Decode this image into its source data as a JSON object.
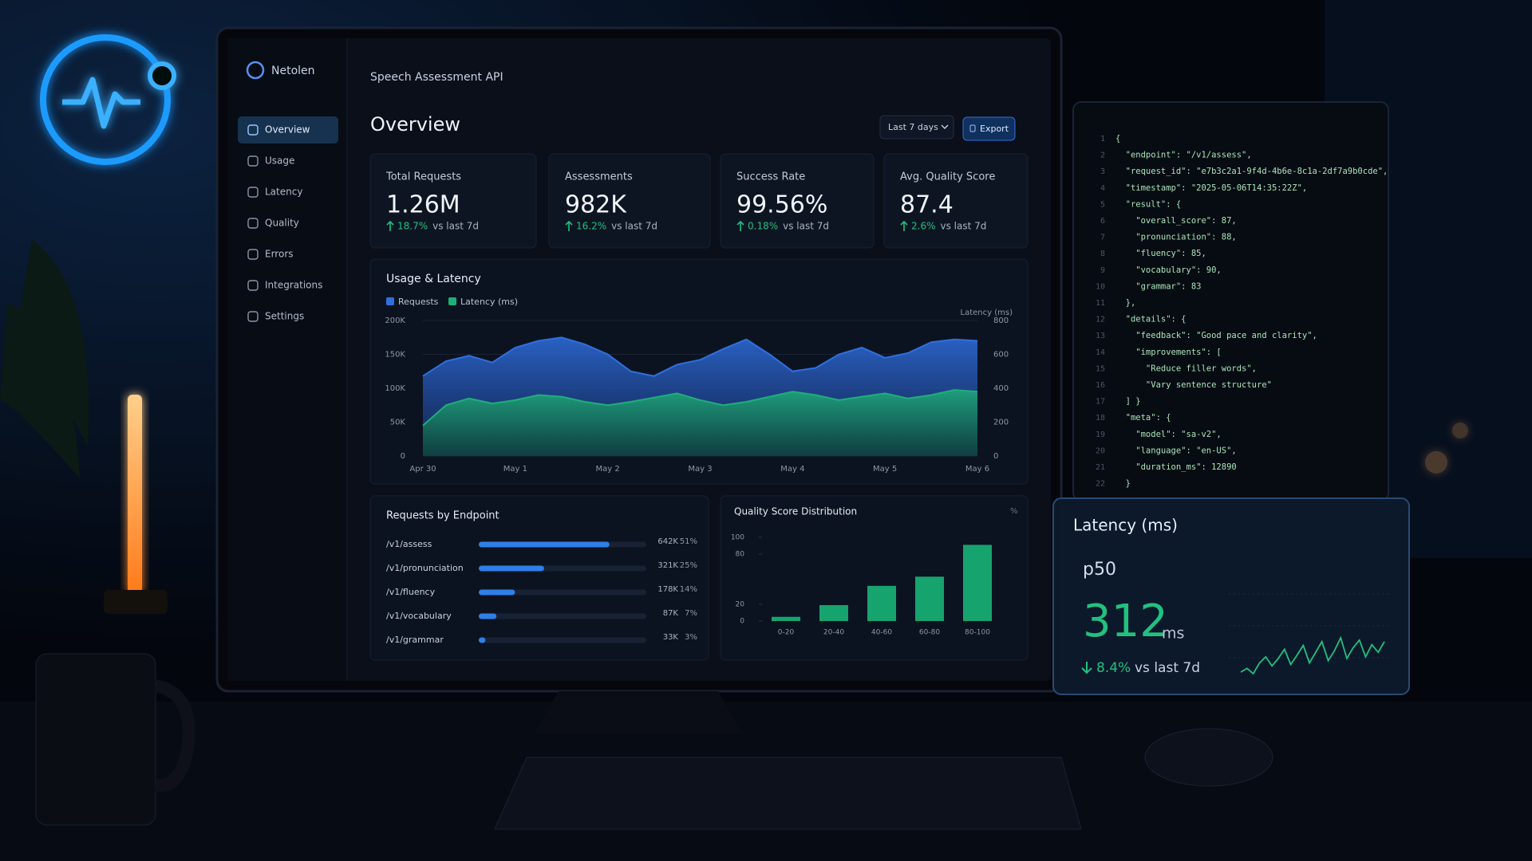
{
  "sidebar": {
    "brand": "Netolen",
    "nav": [
      "Overview",
      "Usage",
      "Latency",
      "Quality",
      "Errors",
      "Integrations",
      "Settings"
    ]
  },
  "header": {
    "product": "Speech Assessment API",
    "title": "Overview",
    "range_button": "Last 7 days",
    "export_button": "Export"
  },
  "kpis": [
    {
      "label": "Total Requests",
      "value": "1.26M",
      "delta": "18.7%",
      "comparison": "vs last 7d"
    },
    {
      "label": "Assessments",
      "value": "982K",
      "delta": "16.2%",
      "comparison": "vs last 7d"
    },
    {
      "label": "Success Rate",
      "value": "99.56%",
      "delta": "0.18%",
      "comparison": "vs last 7d"
    },
    {
      "label": "Avg. Quality Score",
      "value": "87.4",
      "delta": "2.6%",
      "comparison": "vs last 7d"
    }
  ],
  "code": {
    "lines": [
      "{",
      "  \"endpoint\": \"/v1/assess\",",
      "  \"request_id\": \"e7b3c2a1-9f4d-4b6e-8c1a-2df7a9b0cde\",",
      "  \"timestamp\": \"2025-05-06T14:35:22Z\",",
      "  \"result\": {",
      "    \"overall_score\": 87,",
      "    \"pronunciation\": 88,",
      "    \"fluency\": 85,",
      "    \"vocabulary\": 90,",
      "    \"grammar\": 83",
      "  },",
      "  \"details\": {",
      "    \"feedback\": \"Good pace and clarity\",",
      "    \"improvements\": [",
      "      \"Reduce filler words\",",
      "      \"Vary sentence structure\"",
      "  ] }",
      "  \"meta\": {",
      "    \"model\": \"sa-v2\",",
      "    \"language\": \"en-US\",",
      "    \"duration_ms\": 12890",
      "  }"
    ],
    "line_numbers": [
      1,
      2,
      3,
      4,
      5,
      6,
      7,
      8,
      9,
      10,
      11,
      12,
      13,
      14,
      15,
      16,
      17,
      18,
      19,
      20,
      21,
      22
    ]
  },
  "latency_card": {
    "title": "Latency (ms)",
    "metric": "p50",
    "value": "312",
    "unit": "ms",
    "delta": "8.4%",
    "comparison": "vs last 7d"
  },
  "chart_data": [
    {
      "type": "area",
      "title": "Usage & Latency",
      "y2_label": "Latency (ms)",
      "categories": [
        "Apr 30",
        null,
        null,
        null,
        "May 1",
        null,
        null,
        null,
        "May 2",
        null,
        null,
        null,
        "May 3",
        null,
        null,
        null,
        "May 4",
        null,
        null,
        null,
        "May 5",
        null,
        null,
        null,
        "May 6"
      ],
      "series": [
        {
          "name": "Requests",
          "color": "#2f6fe0",
          "values": [
            118000,
            140000,
            148000,
            138000,
            160000,
            170000,
            175000,
            165000,
            150000,
            125000,
            118000,
            135000,
            142000,
            158000,
            172000,
            150000,
            125000,
            130000,
            150000,
            160000,
            145000,
            152000,
            168000,
            172000,
            170000
          ]
        },
        {
          "name": "Latency (ms)",
          "color": "#1fae7a",
          "axis": "y2",
          "values": [
            180,
            300,
            340,
            310,
            330,
            360,
            350,
            320,
            300,
            320,
            345,
            370,
            330,
            300,
            320,
            350,
            380,
            360,
            330,
            350,
            370,
            340,
            360,
            390,
            380
          ]
        }
      ],
      "ylim": [
        0,
        200000
      ],
      "yticks": [
        0,
        {
          "value": 50000,
          "label": "50K"
        },
        {
          "value": 100000,
          "label": "100K"
        },
        {
          "value": 150000,
          "label": "150K"
        },
        {
          "value": 200000,
          "label": "200K"
        }
      ],
      "y2lim": [
        0,
        800
      ],
      "y2ticks": [
        0,
        200,
        400,
        600,
        800
      ],
      "grid": true,
      "legend": "top-left"
    },
    {
      "type": "hbar",
      "title": "Requests by Endpoint",
      "categories": [
        "/v1/assess",
        "/v1/pronunciation",
        "/v1/fluency",
        "/v1/vocabulary",
        "/v1/grammar"
      ],
      "values": [
        642000,
        321000,
        178000,
        87000,
        33000
      ],
      "value_labels": [
        "642K",
        "321K",
        "178K",
        "87K",
        "33K"
      ],
      "share_labels": [
        "51%",
        "25%",
        "14%",
        "7%",
        "3%"
      ],
      "color": "#2f7fe8"
    },
    {
      "type": "bar",
      "title": "Quality Score Distribution",
      "unit_label": "%",
      "categories": [
        "0-20",
        "20-40",
        "40-60",
        "60-80",
        "80-100"
      ],
      "values": [
        5,
        19,
        42,
        53,
        91
      ],
      "ylim": [
        0,
        100
      ],
      "yticks": [
        0,
        20,
        80,
        100
      ],
      "color": "#17a36e"
    },
    {
      "type": "line",
      "values": [
        300,
        305,
        298,
        312,
        320,
        308,
        318,
        330,
        310,
        322,
        335,
        312,
        326,
        340,
        315,
        328,
        345,
        318,
        332,
        342,
        320,
        336,
        326,
        340
      ],
      "color": "#22c07f"
    }
  ]
}
